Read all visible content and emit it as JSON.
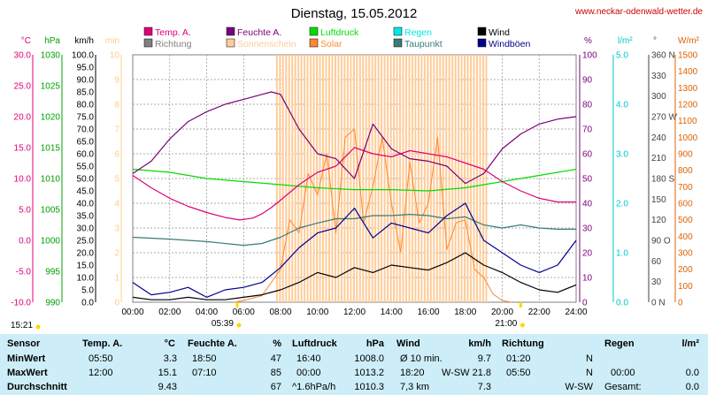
{
  "chart_data": {
    "type": "line",
    "title": "Dienstag, 15.05.2012",
    "source": "www.neckar-odenwald-wetter.de",
    "x": [
      "00:00",
      "02:00",
      "04:00",
      "06:00",
      "08:00",
      "10:00",
      "12:00",
      "14:00",
      "16:00",
      "18:00",
      "20:00",
      "22:00",
      "24:00"
    ],
    "left_axes": [
      {
        "unit": "°C",
        "color": "#e0007a",
        "ticks": [
          "30.0",
          "25.0",
          "20.0",
          "15.0",
          "10.0",
          "5.0",
          "0.0",
          "-5.0",
          "-10.0"
        ]
      },
      {
        "unit": "hPa",
        "color": "#00a000",
        "ticks": [
          "1030",
          "1025",
          "1020",
          "1015",
          "1010",
          "1005",
          "1000",
          "995",
          "990"
        ]
      },
      {
        "unit": "km/h",
        "color": "#000000",
        "ticks": [
          "100.0",
          "95.0",
          "90.0",
          "85.0",
          "80.0",
          "75.0",
          "70.0",
          "65.0",
          "60.0",
          "55.0",
          "50.0",
          "45.0",
          "40.0",
          "35.0",
          "30.0",
          "25.0",
          "20.0",
          "15.0",
          "10.0",
          "5.0",
          "0.0"
        ]
      },
      {
        "unit": "min",
        "color": "#ffcc88",
        "ticks": [
          "10",
          "9",
          "8",
          "7",
          "6",
          "5",
          "4",
          "3",
          "2",
          "1",
          "0"
        ]
      }
    ],
    "right_axes": [
      {
        "unit": "%",
        "color": "#7a007a",
        "ticks": [
          "100",
          "90",
          "80",
          "70",
          "60",
          "50",
          "40",
          "30",
          "20",
          "10",
          "0"
        ]
      },
      {
        "unit": "l/m²",
        "color": "#00c8c8",
        "ticks": [
          "5.0",
          "4.0",
          "3.0",
          "2.0",
          "1.0",
          "0.0"
        ]
      },
      {
        "unit": "°",
        "color": "#404040",
        "ticks": [
          "360 N",
          "330",
          "300",
          "270 W",
          "240",
          "210",
          "180 S",
          "150",
          "120",
          "90 O",
          "60",
          "30",
          "0 N"
        ]
      },
      {
        "unit": "W/m²",
        "color": "#e06000",
        "ticks": [
          "1500",
          "1400",
          "1300",
          "1200",
          "1100",
          "1000",
          "900",
          "800",
          "700",
          "600",
          "500",
          "400",
          "300",
          "200",
          "100",
          "0"
        ]
      }
    ],
    "legend": [
      {
        "label": "Temp. A.",
        "color": "#e0007a"
      },
      {
        "label": "Feuchte A.",
        "color": "#7a007a"
      },
      {
        "label": "Luftdruck",
        "color": "#00dd00"
      },
      {
        "label": "Regen",
        "color": "#00e8e8"
      },
      {
        "label": "Wind",
        "color": "#000000"
      },
      {
        "label": "Richtung",
        "color": "#808080"
      },
      {
        "label": "Sonnenschein",
        "color": "#ffcc99"
      },
      {
        "label": "Solar",
        "color": "#ff8833"
      },
      {
        "label": "Taupunkt",
        "color": "#3a7a7a"
      },
      {
        "label": "Windböen",
        "color": "#000090"
      }
    ],
    "sunrise": "05:39",
    "sunset": "21:00",
    "time_marker": "15:21",
    "series": [
      {
        "name": "Temp. A.",
        "axis": "°C",
        "color": "#e0007a",
        "x": [
          0,
          1,
          2,
          3,
          4,
          5,
          5.8,
          6.5,
          7,
          7.5,
          8,
          9,
          10,
          11,
          12,
          13,
          14,
          15,
          16,
          17,
          18,
          19,
          20,
          21,
          22,
          23,
          24
        ],
        "values": [
          10.5,
          8.5,
          6.8,
          5.5,
          4.5,
          3.7,
          3.3,
          3.6,
          4.3,
          5.3,
          6.5,
          9.0,
          11.0,
          12.0,
          15.0,
          14.0,
          13.5,
          14.5,
          14.0,
          13.5,
          12.5,
          11.5,
          9.5,
          8.0,
          6.8,
          6.2,
          6.2
        ]
      },
      {
        "name": "Feuchte A.",
        "axis": "%",
        "color": "#7a007a",
        "x": [
          0,
          1,
          2,
          3,
          4,
          5,
          6,
          7,
          7.5,
          8,
          9,
          10,
          11,
          12,
          13,
          14,
          15,
          16,
          17,
          18,
          19,
          20,
          21,
          22,
          23,
          24
        ],
        "values": [
          52,
          57,
          66,
          73,
          77,
          80,
          82,
          84,
          85,
          84,
          70,
          60,
          58,
          50,
          72,
          62,
          58,
          57,
          55,
          48,
          52,
          62,
          68,
          72,
          74,
          75
        ]
      },
      {
        "name": "Luftdruck",
        "axis": "hPa",
        "color": "#00dd00",
        "x": [
          0,
          2,
          4,
          6,
          8,
          10,
          12,
          14,
          16,
          18,
          20,
          22,
          24
        ],
        "values": [
          1011.5,
          1011.0,
          1010.0,
          1009.5,
          1009.0,
          1008.5,
          1008.2,
          1008.2,
          1008.0,
          1008.5,
          1009.5,
          1010.5,
          1011.5
        ]
      },
      {
        "name": "Taupunkt",
        "axis": "°C",
        "color": "#3a7a7a",
        "x": [
          0,
          2,
          4,
          6,
          7,
          8,
          9,
          10,
          11,
          12,
          13,
          14,
          15,
          16,
          17,
          18,
          19,
          20,
          21,
          22,
          23,
          24
        ],
        "values": [
          0.5,
          0.2,
          -0.2,
          -0.8,
          -0.5,
          0.5,
          2.0,
          2.8,
          3.5,
          3.5,
          4.0,
          4.0,
          4.2,
          4.0,
          3.5,
          3.8,
          2.5,
          2.0,
          2.5,
          2.0,
          1.8,
          1.8
        ]
      },
      {
        "name": "Wind",
        "axis": "km/h",
        "color": "#000000",
        "x": [
          0,
          1,
          2,
          3,
          4,
          5,
          6,
          7,
          8,
          9,
          10,
          11,
          12,
          13,
          14,
          15,
          16,
          17,
          18,
          19,
          20,
          21,
          22,
          23,
          24
        ],
        "values": [
          2,
          1,
          1,
          2,
          1,
          1,
          2,
          3,
          5,
          8,
          12,
          10,
          14,
          12,
          15,
          14,
          13,
          16,
          20,
          15,
          12,
          8,
          5,
          4,
          7
        ]
      },
      {
        "name": "Windböen",
        "axis": "km/h",
        "color": "#000090",
        "x": [
          0,
          1,
          2,
          3,
          4,
          5,
          6,
          7,
          8,
          9,
          10,
          11,
          12,
          13,
          14,
          15,
          16,
          17,
          18,
          19,
          20,
          21,
          22,
          23,
          24
        ],
        "values": [
          8,
          3,
          4,
          6,
          2,
          5,
          6,
          8,
          14,
          22,
          28,
          30,
          38,
          26,
          32,
          30,
          28,
          35,
          40,
          25,
          20,
          15,
          12,
          15,
          25
        ]
      },
      {
        "name": "Solar",
        "axis": "W/m²",
        "color": "#ff8833",
        "x": [
          5.5,
          6,
          7,
          8,
          8.5,
          9,
          9.5,
          10,
          10.5,
          11,
          11.5,
          12,
          12.5,
          13,
          13.5,
          14,
          14.5,
          15,
          15.5,
          16,
          16.5,
          17,
          17.5,
          18,
          18.5,
          19,
          19.5,
          20,
          20.5
        ],
        "values": [
          0,
          10,
          40,
          200,
          500,
          420,
          780,
          650,
          900,
          420,
          1000,
          1050,
          480,
          700,
          1000,
          600,
          300,
          850,
          480,
          600,
          1000,
          320,
          480,
          500,
          200,
          150,
          50,
          10,
          0
        ]
      }
    ],
    "sunshine": {
      "axis": "min",
      "color": "#ffcc99",
      "from": 7.8,
      "to": 19.2,
      "value": 10
    }
  },
  "summary": {
    "headers": {
      "sensor": "Sensor",
      "temp": "Temp. A.",
      "temp_unit": "°C",
      "hum": "Feuchte A.",
      "hum_unit": "%",
      "press": "Luftdruck",
      "press_unit": "hPa",
      "wind": "Wind",
      "wind_unit": "km/h",
      "dir": "Richtung",
      "rain": "Regen",
      "rain_unit": "l/m²"
    },
    "rows": [
      {
        "label": "MinWert",
        "temp_time": "05:50",
        "temp_val": "3.3",
        "hum_time": "18:50",
        "hum_val": "47",
        "press_time": "16:40",
        "press_val": "1008.0",
        "wind_time": "Ø 10 min.",
        "wind_val": "9.7",
        "dir_time": "01:20",
        "dir_val": "N",
        "rain_time": "",
        "rain_val": ""
      },
      {
        "label": "MaxWert",
        "temp_time": "12:00",
        "temp_val": "15.1",
        "hum_time": "07:10",
        "hum_val": "85",
        "press_time": "00:00",
        "press_val": "1013.2",
        "wind_time": "18:20",
        "wind_val": "W-SW 21.8",
        "dir_time": "05:50",
        "dir_val": "N",
        "rain_time": "00:00",
        "rain_val": "0.0"
      },
      {
        "label": "Durchschnitt",
        "temp_time": "",
        "temp_val": "9.43",
        "hum_time": "",
        "hum_val": "67",
        "press_time": "^1.6hPa/h",
        "press_val": "1010.3",
        "wind_time": "7,3 km",
        "wind_val": "7.3",
        "dir_time": "",
        "dir_val": "W-SW",
        "rain_time": "Gesamt:",
        "rain_val": "0.0"
      }
    ]
  }
}
